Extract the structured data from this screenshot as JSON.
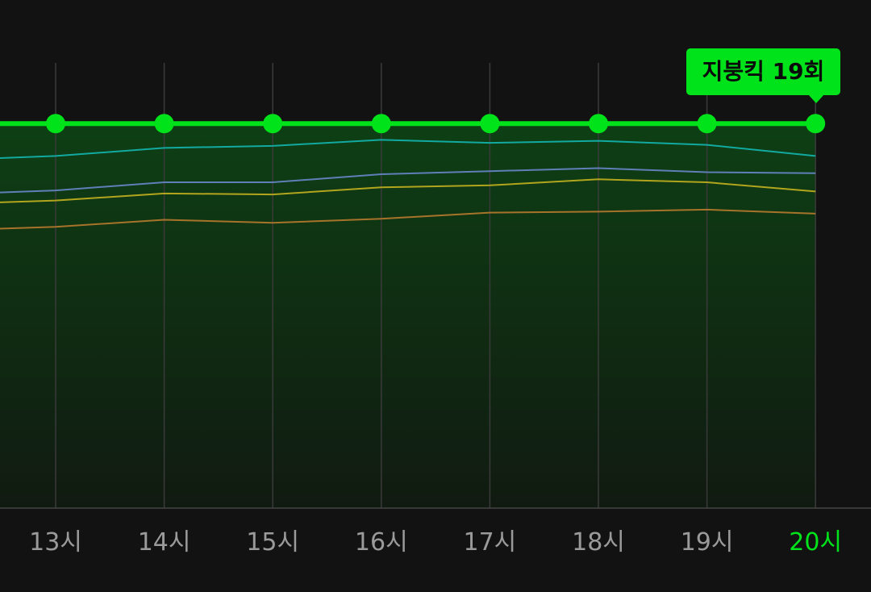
{
  "chart_data": {
    "type": "line",
    "categories": [
      "13시",
      "14시",
      "15시",
      "16시",
      "17시",
      "18시",
      "19시",
      "20시"
    ],
    "highlighted_category": "20시",
    "ylim": [
      0,
      22
    ],
    "grid": "vertical",
    "series": [
      {
        "color": "#00e31a",
        "highlight": true,
        "values": [
          19,
          19,
          19,
          19,
          19,
          19,
          19,
          19
        ]
      },
      {
        "color": "#12a9a0",
        "values": [
          17.4,
          17.8,
          17.9,
          18.2,
          18.05,
          18.15,
          17.95,
          17.4
        ]
      },
      {
        "color": "#5f7fb8",
        "values": [
          15.7,
          16.1,
          16.1,
          16.5,
          16.65,
          16.8,
          16.6,
          16.55
        ]
      },
      {
        "color": "#b2a51e",
        "values": [
          15.2,
          15.55,
          15.5,
          15.85,
          15.95,
          16.25,
          16.1,
          15.65
        ]
      },
      {
        "color": "#a7732b",
        "values": [
          13.9,
          14.25,
          14.1,
          14.3,
          14.6,
          14.65,
          14.75,
          14.55
        ]
      }
    ],
    "tooltip": {
      "category": "20시",
      "text": "지붕킥 19회"
    }
  },
  "colors": {
    "background": "#121212",
    "accent": "#00e31a",
    "tick_label": "#9a9a9a",
    "grid": "#3a3a3a"
  }
}
